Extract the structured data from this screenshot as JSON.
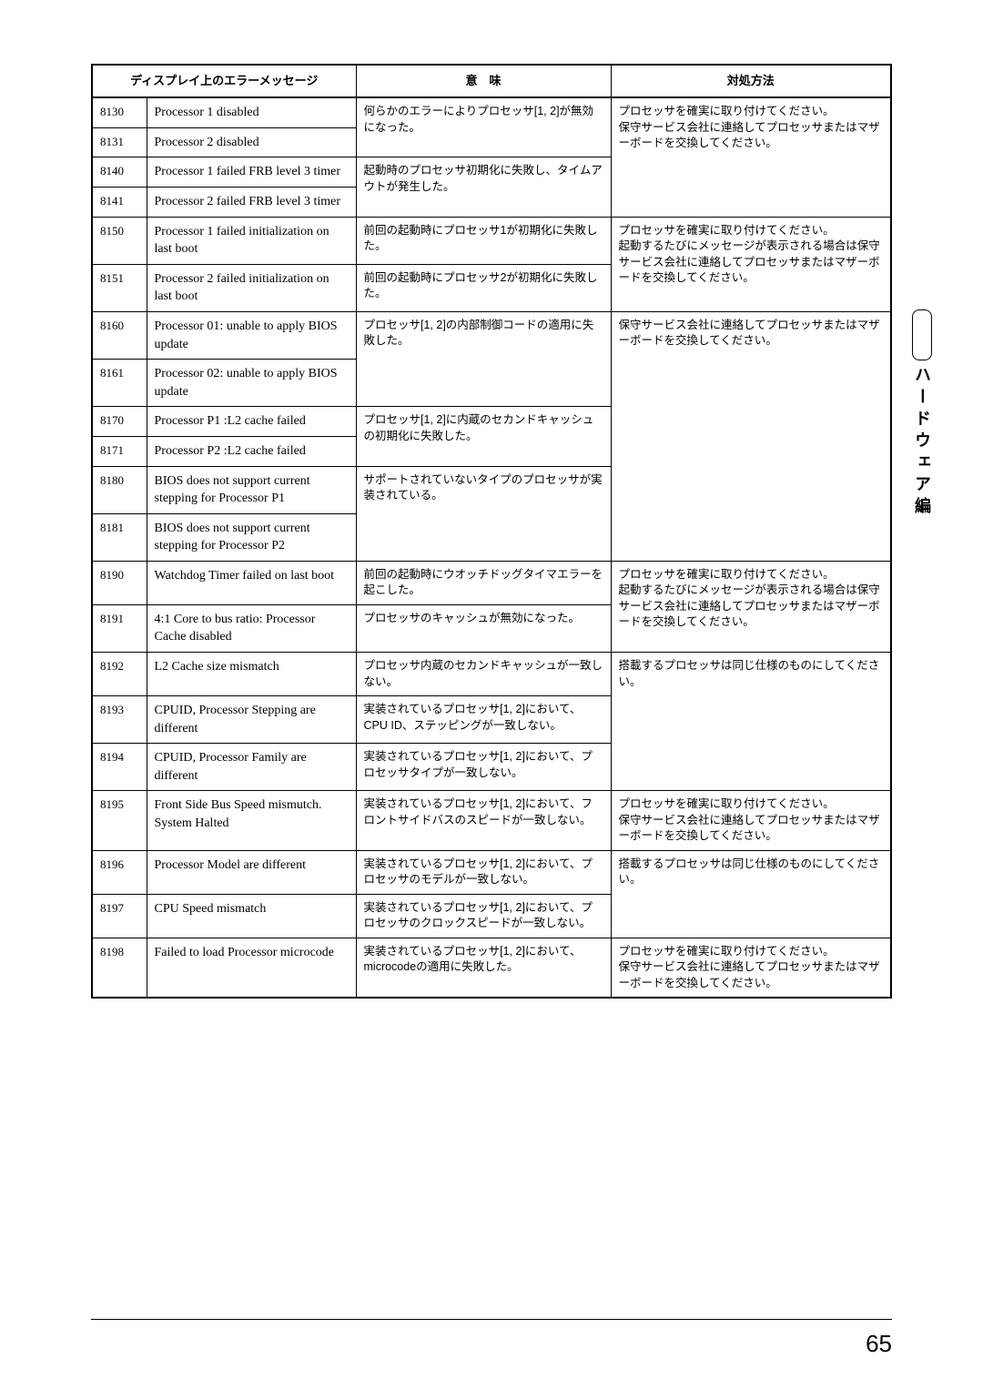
{
  "headers": {
    "display_msg": "ディスプレイ上のエラーメッセージ",
    "meaning": "意　味",
    "action": "対処方法"
  },
  "side_label": "ハードウェア編",
  "page_number": "65",
  "rows": [
    {
      "code": "8130",
      "msg": "Processor 1 disabled",
      "meaning": "何らかのエラーによりプロセッサ[1, 2]が無効になった。",
      "action": "プロセッサを確実に取り付けてください。\n保守サービス会社に連絡してプロセッサまたはマザーボードを交換してください。",
      "m_span": 2,
      "a_span": 4
    },
    {
      "code": "8131",
      "msg": "Processor 2 disabled"
    },
    {
      "code": "8140",
      "msg": "Processor 1 failed FRB level 3 timer",
      "meaning": "起動時のプロセッサ初期化に失敗し、タイムアウトが発生した。",
      "m_span": 2
    },
    {
      "code": "8141",
      "msg": "Processor 2 failed FRB level 3 timer"
    },
    {
      "code": "8150",
      "msg": "Processor 1 failed initialization on last boot",
      "meaning": "前回の起動時にプロセッサ1が初期化に失敗した。",
      "action": "プロセッサを確実に取り付けてください。\n起動するたびにメッセージが表示される場合は保守サービス会社に連絡してプロセッサまたはマザーボードを交換してください。",
      "a_span": 2
    },
    {
      "code": "8151",
      "msg": "Processor 2 failed initialization on last boot",
      "meaning": "前回の起動時にプロセッサ2が初期化に失敗した。"
    },
    {
      "code": "8160",
      "msg": "Processor 01: unable to apply BIOS update",
      "meaning": "プロセッサ[1, 2]の内部制御コードの適用に失敗した。",
      "action": "保守サービス会社に連絡してプロセッサまたはマザーボードを交換してください。",
      "m_span": 2,
      "a_span": 6
    },
    {
      "code": "8161",
      "msg": "Processor 02: unable to apply BIOS update"
    },
    {
      "code": "8170",
      "msg": "Processor P1 :L2 cache failed",
      "meaning": "プロセッサ[1, 2]に内蔵のセカンドキャッシュの初期化に失敗した。",
      "m_span": 2
    },
    {
      "code": "8171",
      "msg": "Processor P2 :L2 cache failed"
    },
    {
      "code": "8180",
      "msg": "BIOS does not support current stepping for Processor P1",
      "meaning": "サポートされていないタイプのプロセッサが実装されている。",
      "m_span": 2
    },
    {
      "code": "8181",
      "msg": "BIOS does not support current stepping for Processor P2"
    },
    {
      "code": "8190",
      "msg": "Watchdog Timer failed on last boot",
      "meaning": "前回の起動時にウオッチドッグタイマエラーを起こした。",
      "action": "プロセッサを確実に取り付けてください。\n起動するたびにメッセージが表示される場合は保守サービス会社に連絡してプロセッサまたはマザーボードを交換してください。",
      "a_span": 2
    },
    {
      "code": "8191",
      "msg": "4:1 Core to bus ratio: Processor Cache disabled",
      "meaning": "プロセッサのキャッシュが無効になった。"
    },
    {
      "code": "8192",
      "msg": "L2 Cache size mismatch",
      "meaning": "プロセッサ内蔵のセカンドキャッシュが一致しない。",
      "action": "搭載するプロセッサは同じ仕様のものにしてください。",
      "a_span": 3
    },
    {
      "code": "8193",
      "msg": "CPUID, Processor Stepping are different",
      "meaning": "実装されているプロセッサ[1, 2]において、CPU ID、ステッピングが一致しない。"
    },
    {
      "code": "8194",
      "msg": "CPUID, Processor Family are different",
      "meaning": "実装されているプロセッサ[1, 2]において、プロセッサタイプが一致しない。"
    },
    {
      "code": "8195",
      "msg": "Front Side Bus Speed mismutch. System Halted",
      "meaning": "実装されているプロセッサ[1, 2]において、フロントサイドバスのスピードが一致しない。",
      "action": "プロセッサを確実に取り付けてください。\n保守サービス会社に連絡してプロセッサまたはマザーボードを交換してください。"
    },
    {
      "code": "8196",
      "msg": "Processor Model are different",
      "meaning": "実装されているプロセッサ[1, 2]において、プロセッサのモデルが一致しない。",
      "action": "搭載するプロセッサは同じ仕様のものにしてください。",
      "a_span": 2
    },
    {
      "code": "8197",
      "msg": "CPU Speed mismatch",
      "meaning": "実装されているプロセッサ[1, 2]において、プロセッサのクロックスピードが一致しない。"
    },
    {
      "code": "8198",
      "msg": "Failed to load Processor microcode",
      "meaning": "実装されているプロセッサ[1, 2]において、microcodeの適用に失敗した。",
      "action": "プロセッサを確実に取り付けてください。\n保守サービス会社に連絡してプロセッサまたはマザーボードを交換してください。"
    }
  ]
}
